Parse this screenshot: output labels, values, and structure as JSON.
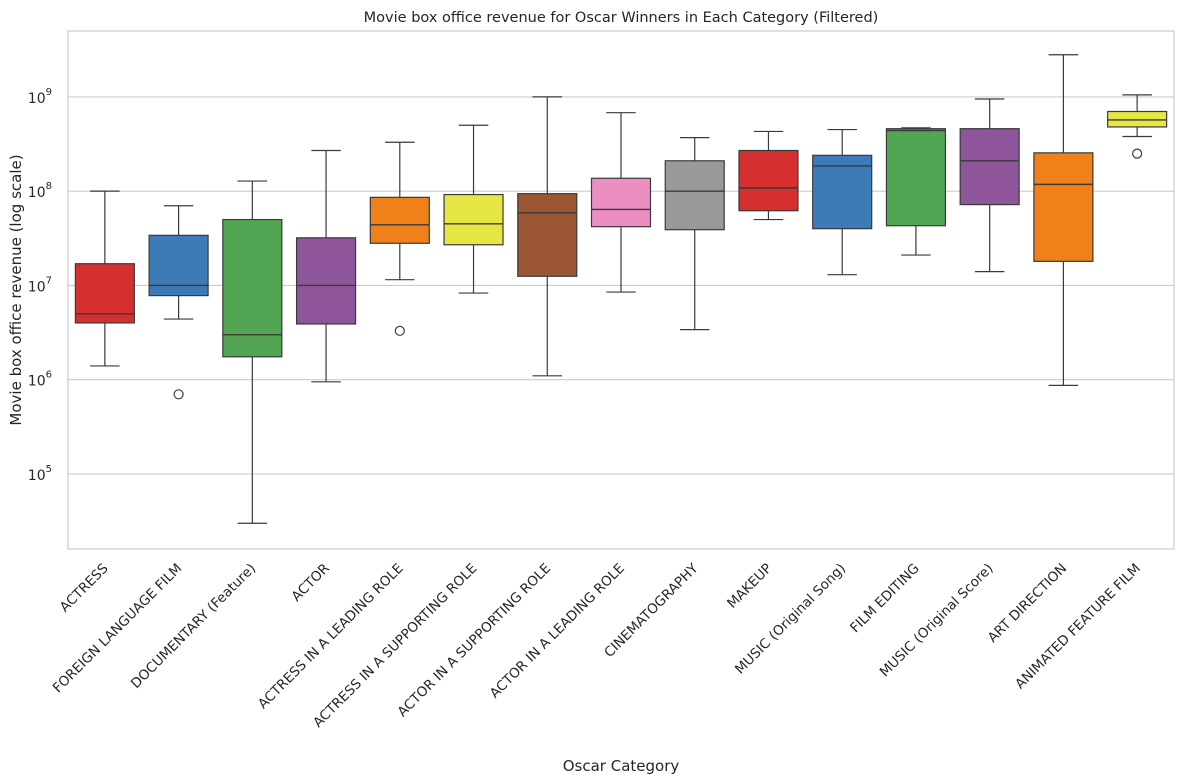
{
  "chart_data": {
    "type": "box",
    "title": "Movie box office revenue for Oscar Winners in Each Category (Filtered)",
    "xlabel": "Oscar Category",
    "ylabel": "Movie box office revenue (log scale)",
    "yscale": "log",
    "ylim": [
      16000,
      5000000000
    ],
    "yticks": [
      {
        "base": "10",
        "exp": "5",
        "value": 100000
      },
      {
        "base": "10",
        "exp": "6",
        "value": 1000000
      },
      {
        "base": "10",
        "exp": "7",
        "value": 10000000
      },
      {
        "base": "10",
        "exp": "8",
        "value": 100000000
      },
      {
        "base": "10",
        "exp": "9",
        "value": 1000000000
      }
    ],
    "grid": "horizontal",
    "categories": [
      {
        "name": "ACTRESS",
        "color": "#d62f2f",
        "whislo": 1400000,
        "q1": 4000000,
        "med": 5000000,
        "q3": 17000000,
        "whishi": 100000000,
        "fliers": []
      },
      {
        "name": "FOREIGN LANGUAGE FILM",
        "color": "#3c7bb5",
        "whislo": 4400000,
        "q1": 7800000,
        "med": 10000000,
        "q3": 34000000,
        "whishi": 70000000,
        "fliers": [
          700000
        ]
      },
      {
        "name": "DOCUMENTARY (Feature)",
        "color": "#52a552",
        "whislo": 30000,
        "q1": 1750000,
        "med": 3000000,
        "q3": 50000000,
        "whishi": 128000000,
        "fliers": []
      },
      {
        "name": "ACTOR",
        "color": "#8f559a",
        "whislo": 950000,
        "q1": 3900000,
        "med": 10000000,
        "q3": 32000000,
        "whishi": 270000000,
        "fliers": []
      },
      {
        "name": "ACTRESS IN A LEADING ROLE",
        "color": "#f0811a",
        "whislo": 11500000,
        "q1": 28000000,
        "med": 44000000,
        "q3": 86000000,
        "whishi": 330000000,
        "fliers": [
          3300000
        ]
      },
      {
        "name": "ACTRESS IN A SUPPORTING ROLE",
        "color": "#e6e645",
        "whislo": 8300000,
        "q1": 27000000,
        "med": 45000000,
        "q3": 92000000,
        "whishi": 500000000,
        "fliers": []
      },
      {
        "name": "ACTOR IN A SUPPORTING ROLE",
        "color": "#9b5733",
        "whislo": 1100000,
        "q1": 12500000,
        "med": 59000000,
        "q3": 94000000,
        "whishi": 1000000000,
        "fliers": []
      },
      {
        "name": "ACTOR IN A LEADING ROLE",
        "color": "#eb8fc2",
        "whislo": 8500000,
        "q1": 42000000,
        "med": 64000000,
        "q3": 137000000,
        "whishi": 680000000,
        "fliers": []
      },
      {
        "name": "CINEMATOGRAPHY",
        "color": "#999999",
        "whislo": 3400000,
        "q1": 39000000,
        "med": 100000000,
        "q3": 210000000,
        "whishi": 370000000,
        "fliers": []
      },
      {
        "name": "MAKEUP",
        "color": "#d62f2f",
        "whislo": 50000000,
        "q1": 62000000,
        "med": 108000000,
        "q3": 270000000,
        "whishi": 430000000,
        "fliers": []
      },
      {
        "name": "MUSIC (Original Song)",
        "color": "#3c7bb5",
        "whislo": 13000000,
        "q1": 40000000,
        "med": 185000000,
        "q3": 240000000,
        "whishi": 450000000,
        "fliers": []
      },
      {
        "name": "FILM EDITING",
        "color": "#52a552",
        "whislo": 21000000,
        "q1": 43000000,
        "med": 440000000,
        "q3": 460000000,
        "whishi": 470000000,
        "fliers": []
      },
      {
        "name": "MUSIC (Original Score)",
        "color": "#8f559a",
        "whislo": 14000000,
        "q1": 72000000,
        "med": 210000000,
        "q3": 460000000,
        "whishi": 950000000,
        "fliers": []
      },
      {
        "name": "ART DIRECTION",
        "color": "#f0811a",
        "whislo": 870000,
        "q1": 18000000,
        "med": 118000000,
        "q3": 255000000,
        "whishi": 2800000000,
        "fliers": []
      },
      {
        "name": "ANIMATED FEATURE FILM",
        "color": "#e6e645",
        "whislo": 380000000,
        "q1": 480000000,
        "med": 570000000,
        "q3": 700000000,
        "whishi": 1050000000,
        "fliers": [
          250000000
        ]
      }
    ]
  }
}
